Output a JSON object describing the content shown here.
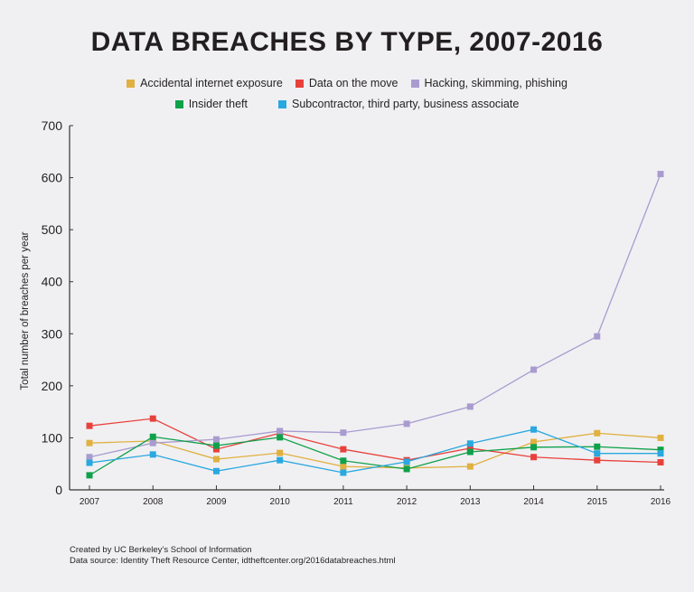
{
  "chart_data": {
    "type": "line",
    "title": "DATA BREACHES BY TYPE, 2007-2016",
    "xlabel": "",
    "ylabel": "Total number of breaches per year",
    "x": [
      "2007",
      "2008",
      "2009",
      "2010",
      "2011",
      "2012",
      "2013",
      "2014",
      "2015",
      "2016"
    ],
    "ylim": [
      0,
      700
    ],
    "yticks": [
      "0",
      "100",
      "200",
      "300",
      "400",
      "500",
      "600",
      "700"
    ],
    "grid": false,
    "legend_placement": "top-center",
    "series": [
      {
        "name": "Accidental internet exposure",
        "color": "#e0b040",
        "values": [
          90,
          94,
          59,
          71,
          45,
          42,
          45,
          92,
          109,
          100
        ]
      },
      {
        "name": "Data on the move",
        "color": "#e8413c",
        "values": [
          123,
          137,
          78,
          109,
          78,
          57,
          80,
          63,
          57,
          53
        ]
      },
      {
        "name": "Hacking, skimming, phishing",
        "color": "#a99bd0",
        "values": [
          63,
          90,
          97,
          113,
          110,
          127,
          160,
          231,
          295,
          607
        ]
      },
      {
        "name": "Insider theft",
        "color": "#0fa14a",
        "values": [
          28,
          102,
          85,
          101,
          56,
          40,
          73,
          82,
          83,
          77
        ]
      },
      {
        "name": "Subcontractor, third party, business associate",
        "color": "#2aa8e0",
        "values": [
          52,
          68,
          36,
          57,
          33,
          54,
          89,
          116,
          70,
          70
        ]
      }
    ]
  },
  "footer": {
    "line1": "Created by UC Berkeley’s School of Information",
    "line2": "Data source: Identity Theft Resource Center, idtheftcenter.org/2016databreaches.html"
  }
}
